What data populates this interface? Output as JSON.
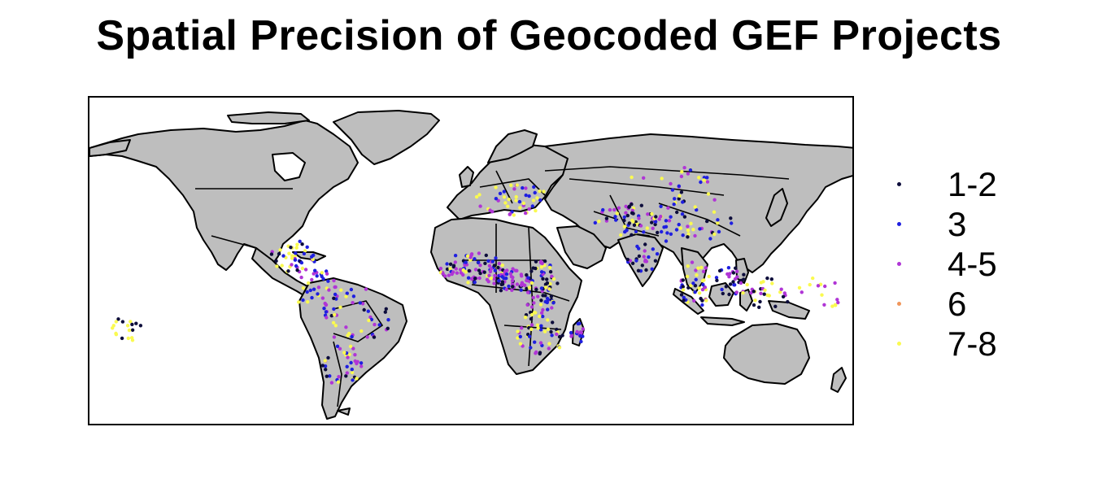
{
  "title": "Spatial Precision of Geocoded GEF Projects",
  "map": {
    "land_color": "#bebebe",
    "border_color": "#000000",
    "ocean_color": "#ffffff"
  },
  "legend": {
    "items": [
      {
        "label": "1-2",
        "color": "#0d0d3b"
      },
      {
        "label": "3",
        "color": "#1f1fe0"
      },
      {
        "label": "4-5",
        "color": "#b035d6"
      },
      {
        "label": "6",
        "color": "#f0965a"
      },
      {
        "label": "7-8",
        "color": "#fafa50"
      }
    ]
  }
}
